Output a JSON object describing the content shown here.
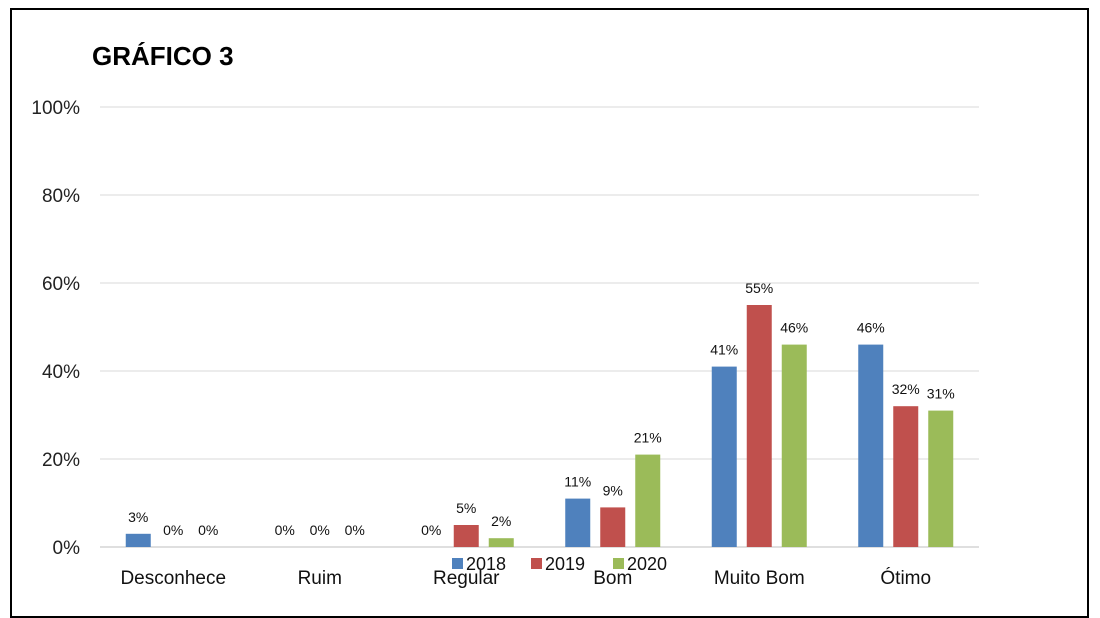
{
  "chart_data": {
    "type": "bar",
    "title": "GRÁFICO 3",
    "categories": [
      "Desconhece",
      "Ruim",
      "Regular",
      "Bom",
      "Muito Bom",
      "Ótimo"
    ],
    "series": [
      {
        "name": "2018",
        "color": "#4F81BD",
        "values": [
          3,
          0,
          0,
          11,
          41,
          46
        ],
        "labels": [
          "3%",
          "0%",
          "0%",
          "11%",
          "41%",
          "46%"
        ]
      },
      {
        "name": "2019",
        "color": "#C0504D",
        "values": [
          0,
          0,
          5,
          9,
          55,
          32
        ],
        "labels": [
          "0%",
          "0%",
          "5%",
          "9%",
          "55%",
          "32%"
        ]
      },
      {
        "name": "2020",
        "color": "#9BBB59",
        "values": [
          0,
          0,
          2,
          21,
          46,
          31
        ],
        "labels": [
          "0%",
          "0%",
          "2%",
          "21%",
          "46%",
          "31%"
        ]
      }
    ],
    "ylim": [
      0,
      100
    ],
    "yticks": [
      0,
      20,
      40,
      60,
      80,
      100
    ],
    "ytick_labels": [
      "0%",
      "20%",
      "40%",
      "60%",
      "80%",
      "100%"
    ],
    "xlabel": "",
    "ylabel": "",
    "grid": true,
    "legend_position": "bottom"
  }
}
